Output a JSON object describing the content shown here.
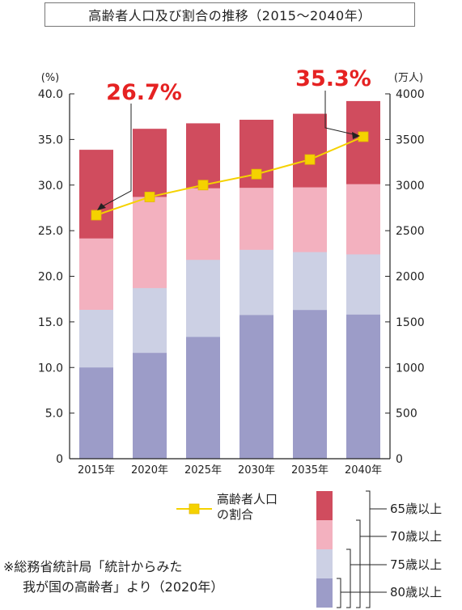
{
  "title": "高齢者人口及び割合の推移（2015～2040年）",
  "note": {
    "line1": "※総務省統計局「統計からみた",
    "line2": "我が国の高齢者」より（2020年）"
  },
  "chart_data": {
    "type": "bar",
    "categories": [
      "2015年",
      "2020年",
      "2025年",
      "2030年",
      "2035年",
      "2040年"
    ],
    "left_axis": {
      "unit": "(%)",
      "ylim": [
        0,
        40
      ],
      "ticks": [
        "0",
        "5.0",
        "10.0",
        "15.0",
        "20.0",
        "25.0",
        "30.0",
        "35.0",
        "40.0"
      ]
    },
    "right_axis": {
      "unit": "(万人)",
      "ylim": [
        0,
        4000
      ],
      "ticks": [
        "0",
        "500",
        "1000",
        "1500",
        "2000",
        "2500",
        "3000",
        "3500",
        "4000"
      ]
    },
    "stack_series": [
      {
        "name": "80歳以上",
        "color": "#9c9cc8",
        "values": [
          1000,
          1160,
          1335,
          1575,
          1630,
          1580
        ]
      },
      {
        "name": "75歳以上",
        "color": "#ccd0e4",
        "values": [
          1632,
          1870,
          2180,
          2290,
          2265,
          2240
        ]
      },
      {
        "name": "70歳以上",
        "color": "#f3b1bf",
        "values": [
          2415,
          2870,
          2965,
          2970,
          2975,
          3010
        ]
      },
      {
        "name": "65歳以上",
        "color": "#d04c5e",
        "values": [
          3387,
          3617,
          3677,
          3716,
          3782,
          3921
        ]
      }
    ],
    "line_series": {
      "name": "高齢者人口の割合",
      "color": "#f5d200",
      "values": [
        26.7,
        28.7,
        30.0,
        31.2,
        32.8,
        35.3
      ]
    },
    "callouts": [
      "26.7%",
      "35.3%"
    ],
    "legend": {
      "line_label_1": "高齢者人口",
      "line_label_2": "の割合",
      "age_labels": [
        "65歳以上",
        "70歳以上",
        "75歳以上",
        "80歳以上"
      ]
    }
  }
}
